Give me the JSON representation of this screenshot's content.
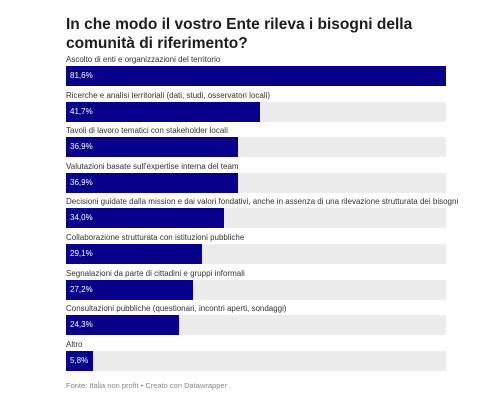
{
  "chart_data": {
    "type": "bar",
    "orientation": "horizontal",
    "title": "In che modo il vostro Ente rileva i bisogni della comunità di riferimento?",
    "categories": [
      "Ascolto di enti e organizzazioni del territorio",
      "Ricerche e analisi territoriali (dati, studi, osservatori locali)",
      "Tavoli di lavoro tematici con stakeholder locali",
      "Valutazioni basate sull'expertise interna del team",
      "Decisioni guidate dalla mission e dai valori fondativi, anche in assenza di una rilevazione strutturata dei bisogni",
      "Collaborazione strutturata con istituzioni pubbliche",
      "Segnalazioni da parte di cittadini e gruppi informali",
      "Consultazioni pubbliche (questionari, incontri aperti, sondaggi)",
      "Altro"
    ],
    "values": [
      81.6,
      41.7,
      36.9,
      36.9,
      34.0,
      29.1,
      27.2,
      24.3,
      5.8
    ],
    "value_labels": [
      "81,6%",
      "41,7%",
      "36,9%",
      "36,9%",
      "34,0%",
      "29,1%",
      "27,2%",
      "24,3%",
      "5,8%"
    ],
    "xlim": [
      0,
      81.6
    ],
    "bar_color": "#08008a",
    "track_color": "#ececec",
    "grid": false,
    "legend": "none"
  },
  "footer": "Fonte: Italia non profit • Creato con Datawrapper"
}
